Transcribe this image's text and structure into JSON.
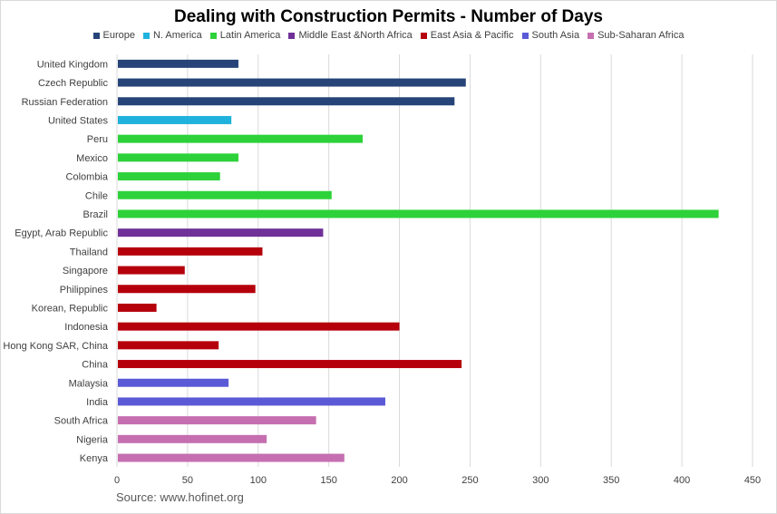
{
  "chart_data": {
    "type": "bar",
    "orientation": "horizontal",
    "title": "Dealing with Construction Permits - Number of Days",
    "xlabel": "",
    "ylabel": "",
    "xlim": [
      0,
      450
    ],
    "xticks": [
      0,
      50,
      100,
      150,
      200,
      250,
      300,
      350,
      400,
      450
    ],
    "grid": "vertical",
    "legend_position": "top",
    "series": [
      {
        "name": "Europe",
        "color": "#264478"
      },
      {
        "name": "N. America",
        "color": "#1fb2dd"
      },
      {
        "name": "Latin America",
        "color": "#2dd23a"
      },
      {
        "name": "Middle East &North Africa",
        "color": "#6f3198"
      },
      {
        "name": "East Asia & Pacific",
        "color": "#b5000b"
      },
      {
        "name": "South Asia",
        "color": "#5a5ad7"
      },
      {
        "name": "Sub-Saharan Africa",
        "color": "#c66fb0"
      }
    ],
    "bars": [
      {
        "label": "United Kingdom",
        "value": 86,
        "group": "Europe"
      },
      {
        "label": "Czech Republic",
        "value": 247,
        "group": "Europe"
      },
      {
        "label": "Russian Federation",
        "value": 239,
        "group": "Europe"
      },
      {
        "label": "United States",
        "value": 81,
        "group": "N. America"
      },
      {
        "label": "Peru",
        "value": 174,
        "group": "Latin America"
      },
      {
        "label": "Mexico",
        "value": 86,
        "group": "Latin America"
      },
      {
        "label": "Colombia",
        "value": 73,
        "group": "Latin America"
      },
      {
        "label": "Chile",
        "value": 152,
        "group": "Latin America"
      },
      {
        "label": "Brazil",
        "value": 426,
        "group": "Latin America"
      },
      {
        "label": "Egypt, Arab Republic",
        "value": 146,
        "group": "Middle East &North Africa"
      },
      {
        "label": "Thailand",
        "value": 103,
        "group": "East Asia & Pacific"
      },
      {
        "label": "Singapore",
        "value": 48,
        "group": "East Asia & Pacific"
      },
      {
        "label": "Philippines",
        "value": 98,
        "group": "East Asia & Pacific"
      },
      {
        "label": "Korean, Republic",
        "value": 28,
        "group": "East Asia & Pacific"
      },
      {
        "label": "Indonesia",
        "value": 200,
        "group": "East Asia & Pacific"
      },
      {
        "label": "Hong Kong SAR, China",
        "value": 72,
        "group": "East Asia & Pacific"
      },
      {
        "label": "China",
        "value": 244,
        "group": "East Asia & Pacific"
      },
      {
        "label": "Malaysia",
        "value": 79,
        "group": "South Asia"
      },
      {
        "label": "India",
        "value": 190,
        "group": "South Asia"
      },
      {
        "label": "South Africa",
        "value": 141,
        "group": "Sub-Saharan Africa"
      },
      {
        "label": "Nigeria",
        "value": 106,
        "group": "Sub-Saharan Africa"
      },
      {
        "label": "Kenya",
        "value": 161,
        "group": "Sub-Saharan Africa"
      }
    ],
    "source": "Source: www.hofinet.org"
  }
}
